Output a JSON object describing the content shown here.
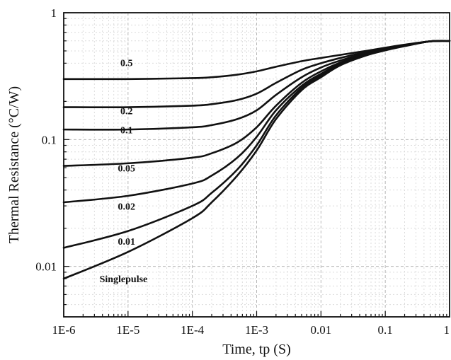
{
  "chart_data": {
    "type": "line",
    "xscale": "log",
    "yscale": "log",
    "xlim": [
      1e-06,
      1
    ],
    "ylim": [
      0.004,
      1
    ],
    "xlabel": "Time, tp (S)",
    "ylabel": "Thermal Resistance (°C/W)",
    "grid": true,
    "xticks": [
      {
        "value": 1e-06,
        "label": "1E-6"
      },
      {
        "value": 1e-05,
        "label": "1E-5"
      },
      {
        "value": 0.0001,
        "label": "1E-4"
      },
      {
        "value": 0.001,
        "label": "1E-3"
      },
      {
        "value": 0.01,
        "label": "0.01"
      },
      {
        "value": 0.1,
        "label": "0.1"
      },
      {
        "value": 1,
        "label": "1"
      }
    ],
    "yticks": [
      {
        "value": 0.01,
        "label": "0.01"
      },
      {
        "value": 0.1,
        "label": "0.1"
      },
      {
        "value": 1,
        "label": "1"
      }
    ],
    "x": [
      1e-06,
      1e-05,
      0.0001,
      0.0002,
      0.0005,
      0.001,
      0.002,
      0.005,
      0.01,
      0.02,
      0.05,
      0.1,
      0.2,
      0.5,
      1
    ],
    "series": [
      {
        "name": "0.5",
        "label_at": [
          9.5e-06,
          0.38
        ],
        "values": [
          0.3,
          0.3,
          0.305,
          0.31,
          0.325,
          0.345,
          0.375,
          0.415,
          0.44,
          0.465,
          0.5,
          0.53,
          0.56,
          0.595,
          0.6
        ]
      },
      {
        "name": "0.2",
        "label_at": [
          9.5e-06,
          0.158
        ],
        "values": [
          0.18,
          0.18,
          0.185,
          0.19,
          0.205,
          0.23,
          0.28,
          0.355,
          0.4,
          0.44,
          0.49,
          0.525,
          0.555,
          0.595,
          0.6
        ]
      },
      {
        "name": "0.1",
        "label_at": [
          9.5e-06,
          0.112
        ],
        "values": [
          0.12,
          0.12,
          0.125,
          0.13,
          0.145,
          0.17,
          0.225,
          0.31,
          0.37,
          0.42,
          0.48,
          0.52,
          0.555,
          0.595,
          0.6
        ]
      },
      {
        "name": "0.05",
        "label_at": [
          9.5e-06,
          0.056
        ],
        "values": [
          0.062,
          0.065,
          0.072,
          0.078,
          0.095,
          0.125,
          0.185,
          0.28,
          0.345,
          0.405,
          0.475,
          0.515,
          0.55,
          0.595,
          0.6
        ]
      },
      {
        "name": "0.02",
        "label_at": [
          9.5e-06,
          0.028
        ],
        "values": [
          0.032,
          0.036,
          0.045,
          0.052,
          0.072,
          0.105,
          0.17,
          0.265,
          0.33,
          0.395,
          0.47,
          0.51,
          0.55,
          0.595,
          0.6
        ]
      },
      {
        "name": "0.01",
        "label_at": [
          9.5e-06,
          0.0148
        ],
        "values": [
          0.014,
          0.019,
          0.03,
          0.038,
          0.058,
          0.09,
          0.155,
          0.255,
          0.32,
          0.39,
          0.465,
          0.51,
          0.55,
          0.595,
          0.6
        ]
      },
      {
        "name": "Singlepulse",
        "label_at": [
          8.5e-06,
          0.0075
        ],
        "values": [
          0.008,
          0.013,
          0.024,
          0.032,
          0.052,
          0.082,
          0.145,
          0.245,
          0.31,
          0.385,
          0.46,
          0.505,
          0.545,
          0.595,
          0.6
        ]
      }
    ]
  }
}
